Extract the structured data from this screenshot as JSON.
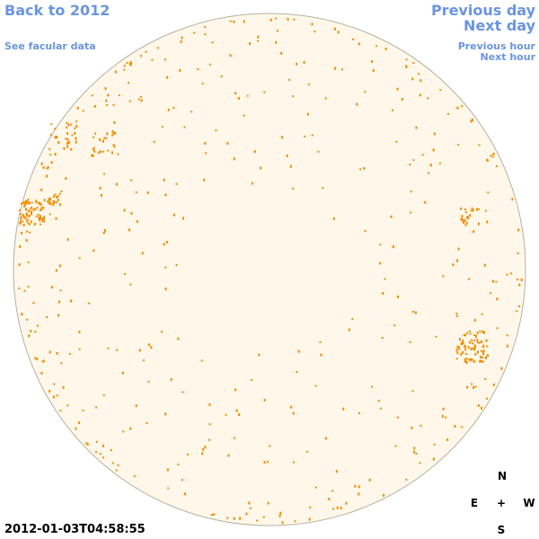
{
  "links": {
    "back_year": "Back to 2012",
    "previous_day": "Previous day",
    "next_day": "Next day",
    "facular_data": "See facular data",
    "previous_hour": "Previous hour",
    "next_hour": "Next hour"
  },
  "timestamp": "2012-01-03T04:58:55",
  "compass": {
    "north": "N",
    "east": "E",
    "center": "+",
    "west": "W",
    "south": "S"
  }
}
